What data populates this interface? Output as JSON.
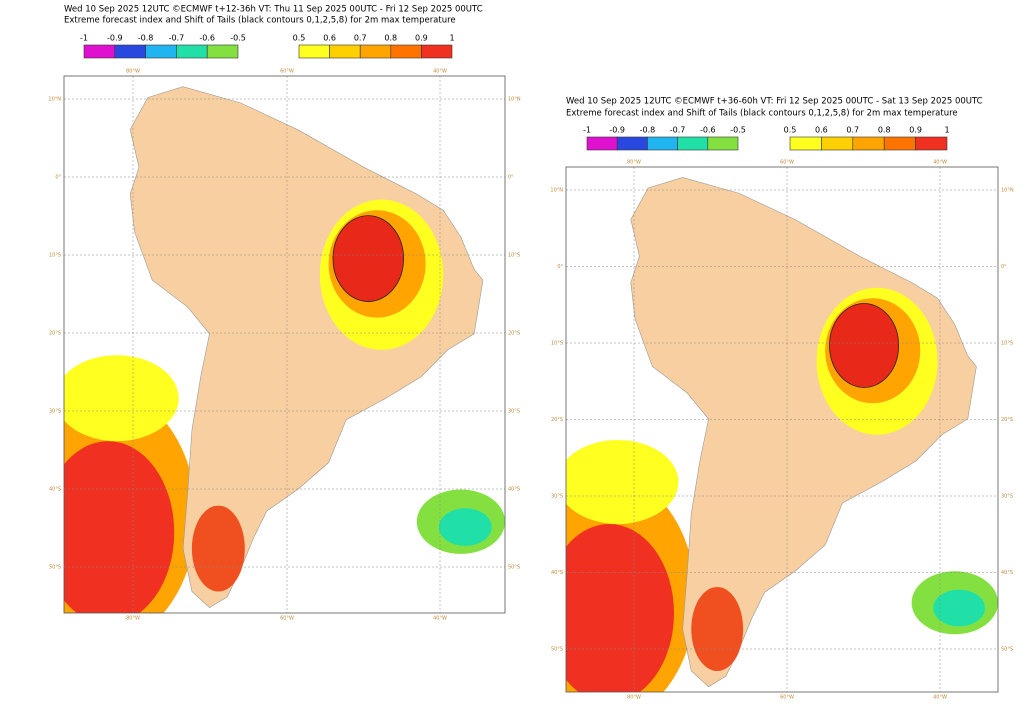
{
  "panels": [
    {
      "title": "Wed 10 Sep 2025 12UTC ©ECMWF t+12-36h  VT: Thu 11 Sep 2025 00UTC - Fri 12 Sep 2025 00UTC",
      "subtitle": "Extreme forecast index and Shift of Tails (black contours 0,1,2,5,8) for 2m max temperature",
      "colorbar_negative": [
        "-1",
        "-0.9",
        "-0.8",
        "-0.7",
        "-0.6",
        "-0.5"
      ],
      "colorbar_positive": [
        "0.5",
        "0.6",
        "0.7",
        "0.8",
        "0.9",
        "1"
      ],
      "lon_labels": [
        "80°W",
        "60°W",
        "40°W"
      ],
      "lat_labels": [
        "10°N",
        "0°",
        "10°S",
        "20°S",
        "30°S",
        "40°S",
        "50°S"
      ]
    },
    {
      "title": "Wed 10 Sep 2025 12UTC ©ECMWF t+36-60h  VT: Fri 12 Sep 2025 00UTC - Sat 13 Sep 2025 00UTC",
      "subtitle": "Extreme forecast index and Shift of Tails (black contours 0,1,2,5,8) for 2m max temperature",
      "colorbar_negative": [
        "-1",
        "-0.9",
        "-0.8",
        "-0.7",
        "-0.6",
        "-0.5"
      ],
      "colorbar_positive": [
        "0.5",
        "0.6",
        "0.7",
        "0.8",
        "0.9",
        "1"
      ],
      "lon_labels": [
        "80°W",
        "60°W",
        "40°W"
      ],
      "lat_labels": [
        "10°N",
        "0°",
        "10°S",
        "20°S",
        "30°S",
        "40°S",
        "50°S"
      ]
    }
  ]
}
